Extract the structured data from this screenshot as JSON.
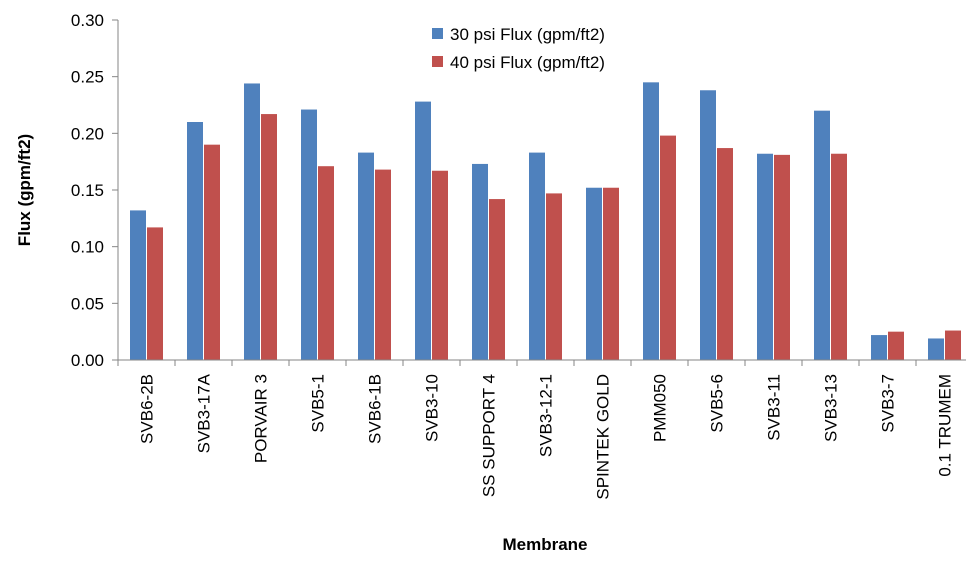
{
  "chart_data": {
    "type": "bar",
    "xlabel": "Membrane",
    "ylabel": "Flux (gpm/ft2)",
    "ylim": [
      0,
      0.3
    ],
    "yticks": [
      "0.00",
      "0.05",
      "0.10",
      "0.15",
      "0.20",
      "0.25",
      "0.30"
    ],
    "grid": false,
    "legend_position": "top-center",
    "categories": [
      "SVB6-2B",
      "SVB3-17A",
      "PORVAIR 3",
      "SVB5-1",
      "SVB6-1B",
      "SVB3-10",
      "SS SUPPORT 4",
      "SVB3-12-1",
      "SPINTEK GOLD",
      "PMM050",
      "SVB5-6",
      "SVB3-11",
      "SVB3-13",
      "SVB3-7",
      "0.1 TRUMEM"
    ],
    "series": [
      {
        "name": "30 psi Flux (gpm/ft2)",
        "color": "#4F81BD",
        "values": [
          0.132,
          0.21,
          0.244,
          0.221,
          0.183,
          0.228,
          0.173,
          0.183,
          0.152,
          0.245,
          0.238,
          0.182,
          0.22,
          0.022,
          0.019
        ]
      },
      {
        "name": "40 psi Flux (gpm/ft2)",
        "color": "#C0504D",
        "values": [
          0.117,
          0.19,
          0.217,
          0.171,
          0.168,
          0.167,
          0.142,
          0.147,
          0.152,
          0.198,
          0.187,
          0.181,
          0.182,
          0.025,
          0.026
        ]
      }
    ]
  }
}
